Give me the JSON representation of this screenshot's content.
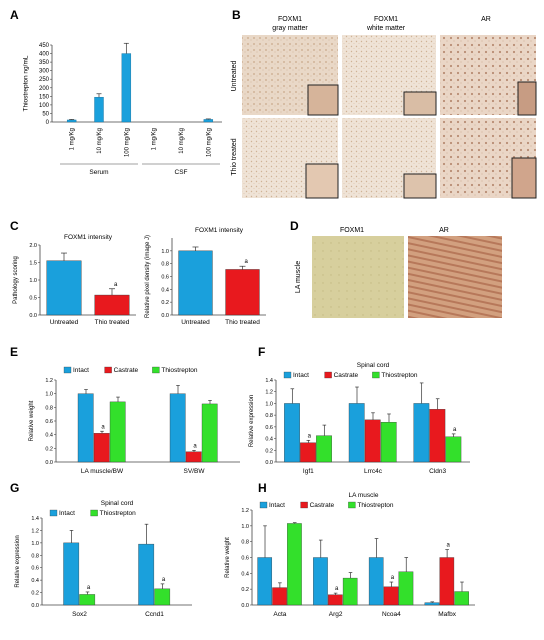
{
  "colors": {
    "blue": "#1aa0dc",
    "red": "#e8191e",
    "green": "#33e02b",
    "axis": "#444444",
    "err": "#333333"
  },
  "panel_letters": {
    "A": "A",
    "B": "B",
    "C": "C",
    "D": "D",
    "E": "E",
    "F": "F",
    "G": "G",
    "H": "H"
  },
  "histology_B": {
    "columns": [
      "FOXM1\ngray matter",
      "FOXM1\nwhite matter",
      "AR"
    ],
    "rows": [
      "Untreated",
      "Thio treated"
    ]
  },
  "histology_D": {
    "columns": [
      "FOXM1",
      "AR"
    ],
    "row": "LA muscle"
  },
  "chart_data": [
    {
      "id": "A",
      "type": "bar",
      "title": "",
      "ylabel": "Thiostrepton ng/mL",
      "ylim": [
        0,
        450
      ],
      "yticks": [
        0,
        50,
        100,
        150,
        200,
        250,
        300,
        350,
        400,
        450
      ],
      "categories": [
        "1 mg/Kg",
        "10 mg/Kg",
        "100 mg/Kg",
        "1 mg/Kg",
        "10 mg/Kg",
        "100 mg/Kg"
      ],
      "groups": [
        {
          "label": "Serum",
          "indices": [
            0,
            1,
            2
          ]
        },
        {
          "label": "CSF",
          "indices": [
            3,
            4,
            5
          ]
        }
      ],
      "values": [
        12,
        145,
        400,
        0,
        0,
        15
      ],
      "errors": [
        3,
        20,
        60,
        0,
        0,
        3
      ]
    },
    {
      "id": "C1",
      "type": "bar",
      "title": "FOXM1 intensity",
      "ylabel": "Pathology scoring",
      "ylim": [
        0,
        2
      ],
      "yticks": [
        0.0,
        0.5,
        1.0,
        1.5,
        2.0
      ],
      "categories": [
        "Untreated",
        "Thio treated"
      ],
      "values": [
        1.55,
        0.57
      ],
      "errors": [
        0.22,
        0.18
      ],
      "bar_colors": [
        "blue",
        "red"
      ],
      "sig": [
        null,
        "a"
      ]
    },
    {
      "id": "C2",
      "type": "bar",
      "title": "FOXM1 intensity",
      "ylabel": "Relative pixel density (image J)",
      "ylim": [
        0,
        1.2
      ],
      "yticks": [
        0.0,
        0.2,
        0.4,
        0.6,
        0.8,
        1.0
      ],
      "categories": [
        "Untreated",
        "Thio treated"
      ],
      "values": [
        1.0,
        0.71
      ],
      "errors": [
        0.06,
        0.05
      ],
      "bar_colors": [
        "blue",
        "red"
      ],
      "sig": [
        null,
        "a"
      ]
    },
    {
      "id": "E",
      "type": "bar",
      "title": "",
      "ylabel": "Relative weight",
      "ylim": [
        0,
        1.2
      ],
      "yticks": [
        0.0,
        0.2,
        0.4,
        0.6,
        0.8,
        1.0,
        1.2
      ],
      "legend": [
        "Intact",
        "Castrate",
        "Thiostrepton"
      ],
      "categories": [
        "LA muscle/BW",
        "SV/BW"
      ],
      "series": [
        {
          "name": "Intact",
          "values": [
            1.0,
            1.0
          ],
          "errors": [
            0.06,
            0.12
          ]
        },
        {
          "name": "Castrate",
          "values": [
            0.42,
            0.15
          ],
          "errors": [
            0.03,
            0.02
          ]
        },
        {
          "name": "Thiostrepton",
          "values": [
            0.88,
            0.85
          ],
          "errors": [
            0.07,
            0.05
          ]
        }
      ],
      "sig": [
        [
          null,
          "a",
          null
        ],
        [
          null,
          "a",
          null
        ]
      ]
    },
    {
      "id": "F",
      "type": "bar",
      "title": "Spinal cord",
      "ylabel": "Relative expression",
      "ylim": [
        0,
        1.4
      ],
      "yticks": [
        0.0,
        0.2,
        0.4,
        0.6,
        0.8,
        1.0,
        1.2,
        1.4
      ],
      "legend": [
        "Intact",
        "Castrate",
        "Thiostrepton"
      ],
      "categories": [
        "Igf1",
        "Lrrc4c",
        "Cldn3"
      ],
      "series": [
        {
          "name": "Intact",
          "values": [
            1.0,
            1.0,
            1.0
          ],
          "errors": [
            0.25,
            0.28,
            0.35
          ]
        },
        {
          "name": "Castrate",
          "values": [
            0.33,
            0.72,
            0.9
          ],
          "errors": [
            0.04,
            0.12,
            0.18
          ]
        },
        {
          "name": "Thiostrepton",
          "values": [
            0.45,
            0.68,
            0.43
          ],
          "errors": [
            0.18,
            0.14,
            0.05
          ]
        }
      ],
      "sig": [
        [
          null,
          "a",
          null
        ],
        [
          null,
          null,
          null
        ],
        [
          null,
          null,
          "a"
        ]
      ]
    },
    {
      "id": "G",
      "type": "bar",
      "title": "Spinal cord",
      "ylabel": "Relative expression",
      "ylim": [
        0,
        1.4
      ],
      "yticks": [
        0.0,
        0.2,
        0.4,
        0.6,
        0.8,
        1.0,
        1.2,
        1.4
      ],
      "legend": [
        "Intact",
        "Thiostrepton"
      ],
      "categories": [
        "Sox2",
        "Ccnd1"
      ],
      "series": [
        {
          "name": "Intact",
          "values": [
            1.0,
            0.98
          ],
          "errors": [
            0.2,
            0.32
          ]
        },
        {
          "name": "Thiostrepton",
          "values": [
            0.17,
            0.26
          ],
          "errors": [
            0.04,
            0.08
          ]
        }
      ],
      "sig": [
        [
          null,
          "a"
        ],
        [
          null,
          "a"
        ]
      ]
    },
    {
      "id": "H",
      "type": "bar",
      "title": "LA muscle",
      "ylabel": "Relative weight",
      "ylim": [
        0,
        1.2
      ],
      "yticks": [
        0.0,
        0.2,
        0.4,
        0.6,
        0.8,
        1.0,
        1.2
      ],
      "legend": [
        "Intact",
        "Castrate",
        "Thiostrepton"
      ],
      "categories": [
        "Acta",
        "Arg2",
        "Ncoa4",
        "Mafbx"
      ],
      "series": [
        {
          "name": "Intact",
          "values": [
            0.6,
            0.6,
            0.6,
            0.03
          ],
          "errors": [
            0.4,
            0.22,
            0.24,
            0.01
          ]
        },
        {
          "name": "Castrate",
          "values": [
            0.22,
            0.13,
            0.23,
            0.6
          ],
          "errors": [
            0.06,
            0.02,
            0.06,
            0.1
          ]
        },
        {
          "name": "Thiostrepton",
          "values": [
            1.03,
            0.34,
            0.42,
            0.17
          ],
          "errors": [
            0.01,
            0.07,
            0.18,
            0.12
          ]
        }
      ],
      "sig": [
        [
          null,
          null,
          null
        ],
        [
          null,
          "a",
          null
        ],
        [
          null,
          "a",
          null
        ],
        [
          null,
          "a",
          null
        ]
      ]
    }
  ]
}
